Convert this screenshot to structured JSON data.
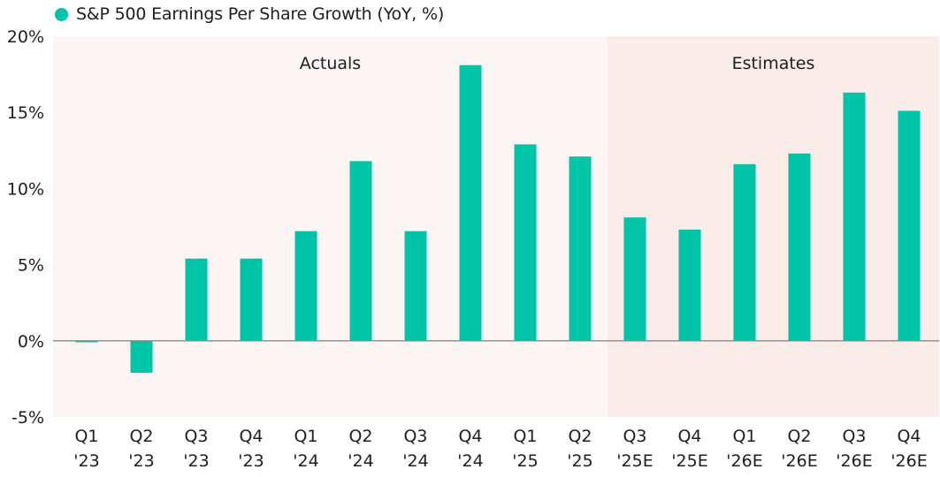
{
  "colors": {
    "bar": "#00c4a7",
    "actuals_bg": "#fcf5f4",
    "estimates_bg": "#f9ece9",
    "zero_line": "#8a8a8a",
    "text": "#1e1e1e"
  },
  "chart_data": {
    "type": "bar",
    "title": "S&P 500 Earnings Per Share Growth (YoY, %)",
    "legend": [
      {
        "label": "S&P 500 Earnings Per Share Growth (YoY, %)",
        "color": "#00c4a7"
      }
    ],
    "legend_position": "top-left",
    "xlabel": "",
    "ylabel": "",
    "ylim": [
      -5,
      20
    ],
    "yticks": [
      -5,
      0,
      5,
      10,
      15,
      20
    ],
    "ytick_labels": [
      "-5%",
      "0%",
      "5%",
      "10%",
      "15%",
      "20%"
    ],
    "grid": false,
    "categories": [
      [
        "Q1",
        "'23"
      ],
      [
        "Q2",
        "'23"
      ],
      [
        "Q3",
        "'23"
      ],
      [
        "Q4",
        "'23"
      ],
      [
        "Q1",
        "'24"
      ],
      [
        "Q2",
        "'24"
      ],
      [
        "Q3",
        "'24"
      ],
      [
        "Q4",
        "'24"
      ],
      [
        "Q1",
        "'25"
      ],
      [
        "Q2",
        "'25"
      ],
      [
        "Q3",
        "'25E"
      ],
      [
        "Q4",
        "'25E"
      ],
      [
        "Q1",
        "'26E"
      ],
      [
        "Q2",
        "'26E"
      ],
      [
        "Q3",
        "'26E"
      ],
      [
        "Q4",
        "'26E"
      ]
    ],
    "series": [
      {
        "name": "S&P 500 Earnings Per Share Growth (YoY, %)",
        "values": [
          -0.1,
          -2.1,
          5.4,
          5.4,
          7.2,
          11.8,
          7.2,
          18.1,
          12.9,
          12.1,
          8.1,
          7.3,
          11.6,
          12.3,
          16.3,
          15.1
        ]
      }
    ],
    "regions": [
      {
        "label": "Actuals",
        "start_index": 0,
        "end_index": 9
      },
      {
        "label": "Estimates",
        "start_index": 10,
        "end_index": 15
      }
    ]
  }
}
